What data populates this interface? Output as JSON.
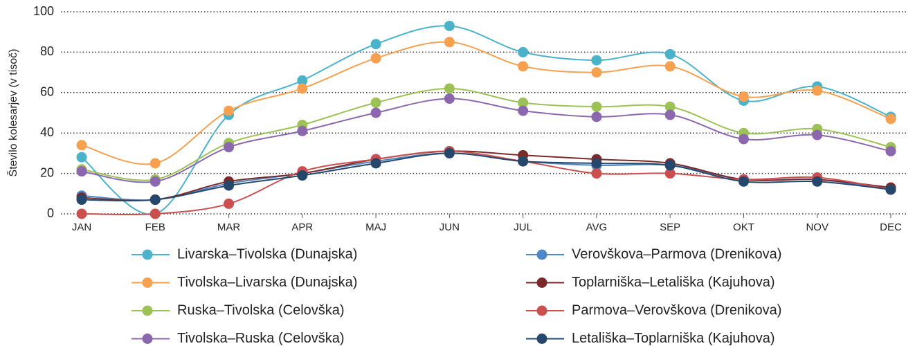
{
  "chart_data": {
    "type": "line",
    "y_label": "Število kolesarjev (v tisoč)",
    "categories": [
      "JAN",
      "FEB",
      "MAR",
      "APR",
      "MAJ",
      "JUN",
      "JUL",
      "AVG",
      "SEP",
      "OKT",
      "NOV",
      "DEC"
    ],
    "ylim": [
      0,
      100
    ],
    "yticks": [
      0,
      20,
      40,
      60,
      80,
      100
    ],
    "grid": true,
    "series": [
      {
        "name": "Livarska–Tivolska (Dunajska)",
        "color": "#4bb3c9",
        "values": [
          28,
          0,
          49,
          66,
          84,
          93,
          80,
          76,
          79,
          56,
          63,
          48
        ]
      },
      {
        "name": "Tivolska–Livarska (Dunajska)",
        "color": "#f7a150",
        "values": [
          34,
          25,
          51,
          62,
          77,
          85,
          73,
          70,
          73,
          58,
          61,
          47
        ]
      },
      {
        "name": "Ruska–Tivolska (Celovška)",
        "color": "#9cc256",
        "values": [
          22,
          17,
          35,
          44,
          55,
          62,
          55,
          53,
          53,
          40,
          42,
          33
        ]
      },
      {
        "name": "Tivolska–Ruska (Celovška)",
        "color": "#8b68ad",
        "values": [
          21,
          16,
          33,
          41,
          50,
          57,
          51,
          48,
          49,
          37,
          39,
          31
        ]
      },
      {
        "name": "Verovškova–Parmova (Drenikova)",
        "color": "#4f86c6",
        "values": [
          9,
          7,
          15,
          20,
          26,
          30,
          26,
          24,
          24,
          17,
          17,
          12
        ]
      },
      {
        "name": "Toplarniška–Letališka (Kajuhova)",
        "color": "#7b2a2a",
        "values": [
          8,
          7,
          16,
          20,
          27,
          31,
          29,
          27,
          25,
          17,
          17,
          13
        ]
      },
      {
        "name": "Parmova–Verovškova (Drenikova)",
        "color": "#cc4f4f",
        "values": [
          0,
          0,
          5,
          21,
          27,
          31,
          26,
          20,
          20,
          17,
          18,
          12
        ]
      },
      {
        "name": "Letališka–Toplarniška (Kajuhova)",
        "color": "#25476b",
        "values": [
          7,
          7,
          14,
          19,
          25,
          30,
          26,
          25,
          24,
          16,
          16,
          12
        ]
      }
    ]
  }
}
